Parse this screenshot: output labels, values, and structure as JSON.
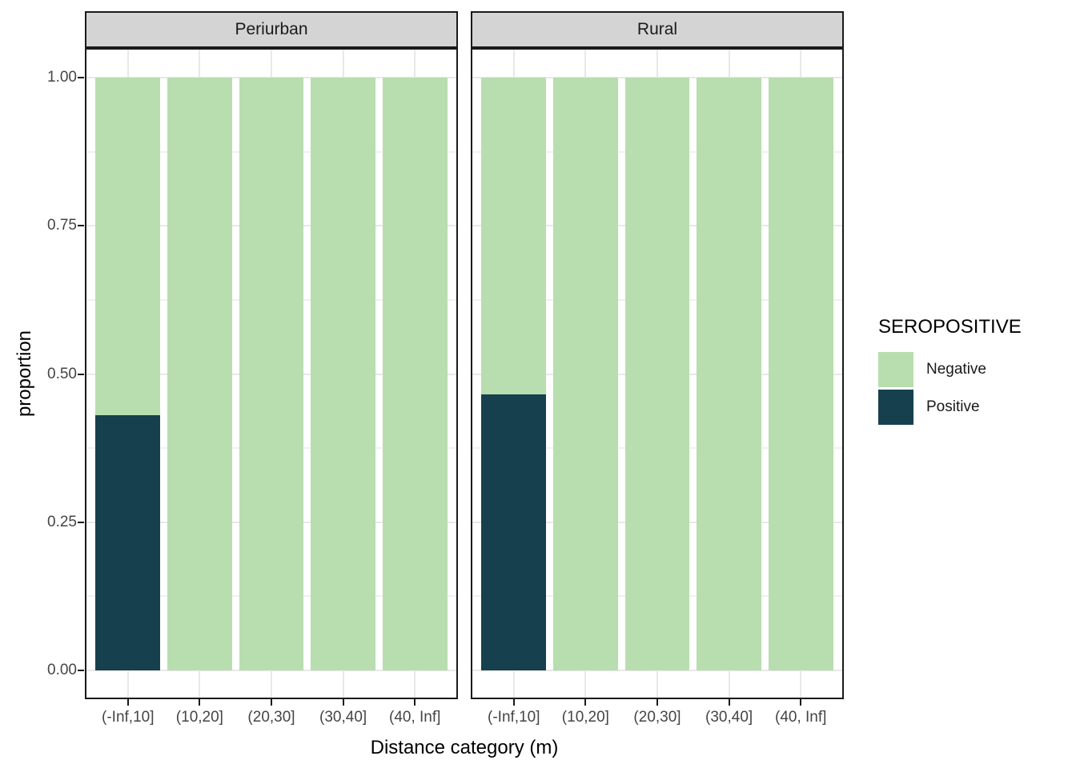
{
  "chart_data": {
    "type": "bar",
    "stacked": true,
    "orientation": "vertical",
    "title": "",
    "xlabel": "Distance category (m)",
    "ylabel": "proportion",
    "categories": [
      "(-Inf,10]",
      "(10,20]",
      "(20,30]",
      "(30,40]",
      "(40, Inf]"
    ],
    "facets": [
      {
        "label": "Periurban",
        "series": [
          {
            "name": "Negative",
            "values": [
              0.57,
              1.0,
              1.0,
              1.0,
              1.0
            ]
          },
          {
            "name": "Positive",
            "values": [
              0.43,
              0.0,
              0.0,
              0.0,
              0.0
            ]
          }
        ]
      },
      {
        "label": "Rural",
        "series": [
          {
            "name": "Negative",
            "values": [
              0.535,
              1.0,
              1.0,
              1.0,
              1.0
            ]
          },
          {
            "name": "Positive",
            "values": [
              0.465,
              0.0,
              0.0,
              0.0,
              0.0
            ]
          }
        ]
      }
    ],
    "y_axis": {
      "range": [
        0,
        1
      ],
      "ticks": [
        {
          "label": "1.00",
          "value": 1.0
        },
        {
          "label": "0.75",
          "value": 0.75
        },
        {
          "label": "0.50",
          "value": 0.5
        },
        {
          "label": "0.25",
          "value": 0.25
        },
        {
          "label": "0.00",
          "value": 0.0
        }
      ]
    },
    "grid": {
      "major": true,
      "minor": true
    },
    "legend": {
      "title": "SEROPOSITIVE",
      "position": "right",
      "items": [
        {
          "label": "Negative",
          "color": "#b8deaf"
        },
        {
          "label": "Positive",
          "color": "#16404d"
        }
      ]
    },
    "colors": {
      "negative_fill": "#b8deaf",
      "positive_fill": "#16404d",
      "strip_bg": "#d4d4d4",
      "panel_border": "#1a1a1a",
      "grid_major": "#e8e8e8",
      "grid_minor": "#f1f1f1",
      "axis_text": "#454545",
      "title_text": "#000000",
      "background": "#ffffff"
    }
  }
}
